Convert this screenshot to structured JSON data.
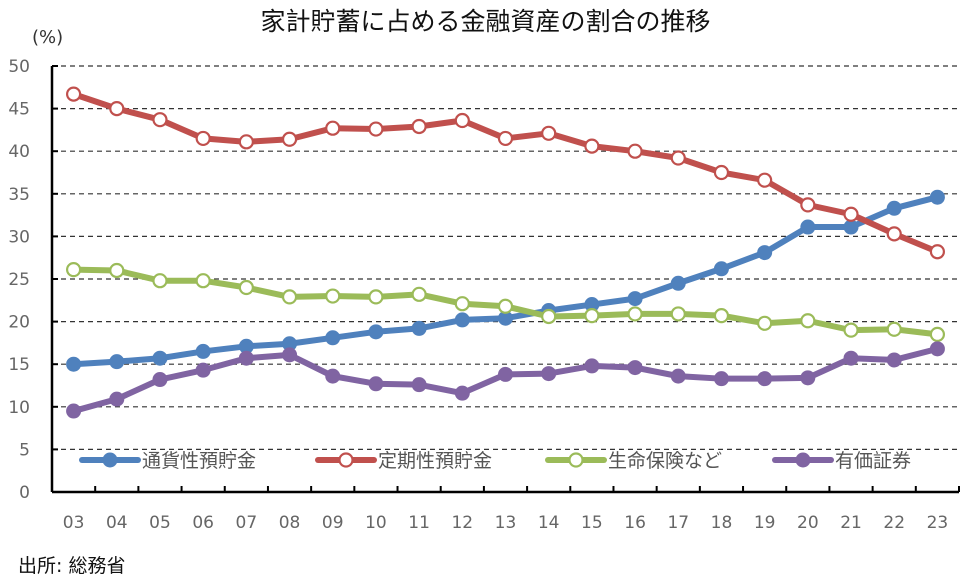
{
  "chart_data": {
    "type": "line",
    "title": "家計貯蓄に占める金融資産の割合の推移",
    "ylabel": "(%)",
    "xlabel": "",
    "ylim": [
      0,
      50
    ],
    "yticks": [
      0,
      5,
      10,
      15,
      20,
      25,
      30,
      35,
      40,
      45,
      50
    ],
    "grid": true,
    "grid_style": "dashed",
    "legend_position": "bottom-inside",
    "categories": [
      "03",
      "04",
      "05",
      "06",
      "07",
      "08",
      "09",
      "10",
      "11",
      "12",
      "13",
      "14",
      "15",
      "16",
      "17",
      "18",
      "19",
      "20",
      "21",
      "22",
      "23"
    ],
    "series": [
      {
        "name": "通貨性預貯金",
        "color": "#4f81bd",
        "marker": "filled-circle",
        "values": [
          15.0,
          15.3,
          15.7,
          16.5,
          17.1,
          17.4,
          18.1,
          18.8,
          19.2,
          20.2,
          20.4,
          21.3,
          22.0,
          22.7,
          24.5,
          26.2,
          28.1,
          31.1,
          31.1,
          33.3,
          34.6
        ]
      },
      {
        "name": "定期性預貯金",
        "color": "#c0504d",
        "marker": "hollow-circle",
        "values": [
          46.7,
          45.0,
          43.7,
          41.5,
          41.1,
          41.4,
          42.7,
          42.6,
          42.9,
          43.6,
          41.5,
          42.1,
          40.6,
          40.0,
          39.2,
          37.5,
          36.6,
          33.7,
          32.6,
          30.3,
          28.2
        ]
      },
      {
        "name": "生命保険など",
        "color": "#9bbb59",
        "marker": "hollow-circle",
        "values": [
          26.1,
          26.0,
          24.8,
          24.8,
          24.0,
          22.9,
          23.0,
          22.9,
          23.2,
          22.1,
          21.8,
          20.6,
          20.7,
          20.9,
          20.9,
          20.7,
          19.8,
          20.1,
          19.0,
          19.1,
          18.5
        ]
      },
      {
        "name": "有価証券",
        "color": "#8064a2",
        "marker": "filled-circle",
        "values": [
          9.5,
          10.9,
          13.2,
          14.3,
          15.7,
          16.1,
          13.6,
          12.7,
          12.6,
          11.6,
          13.8,
          13.9,
          14.8,
          14.6,
          13.6,
          13.3,
          13.3,
          13.4,
          15.7,
          15.5,
          16.8
        ]
      }
    ]
  },
  "source": "出所: 総務省"
}
